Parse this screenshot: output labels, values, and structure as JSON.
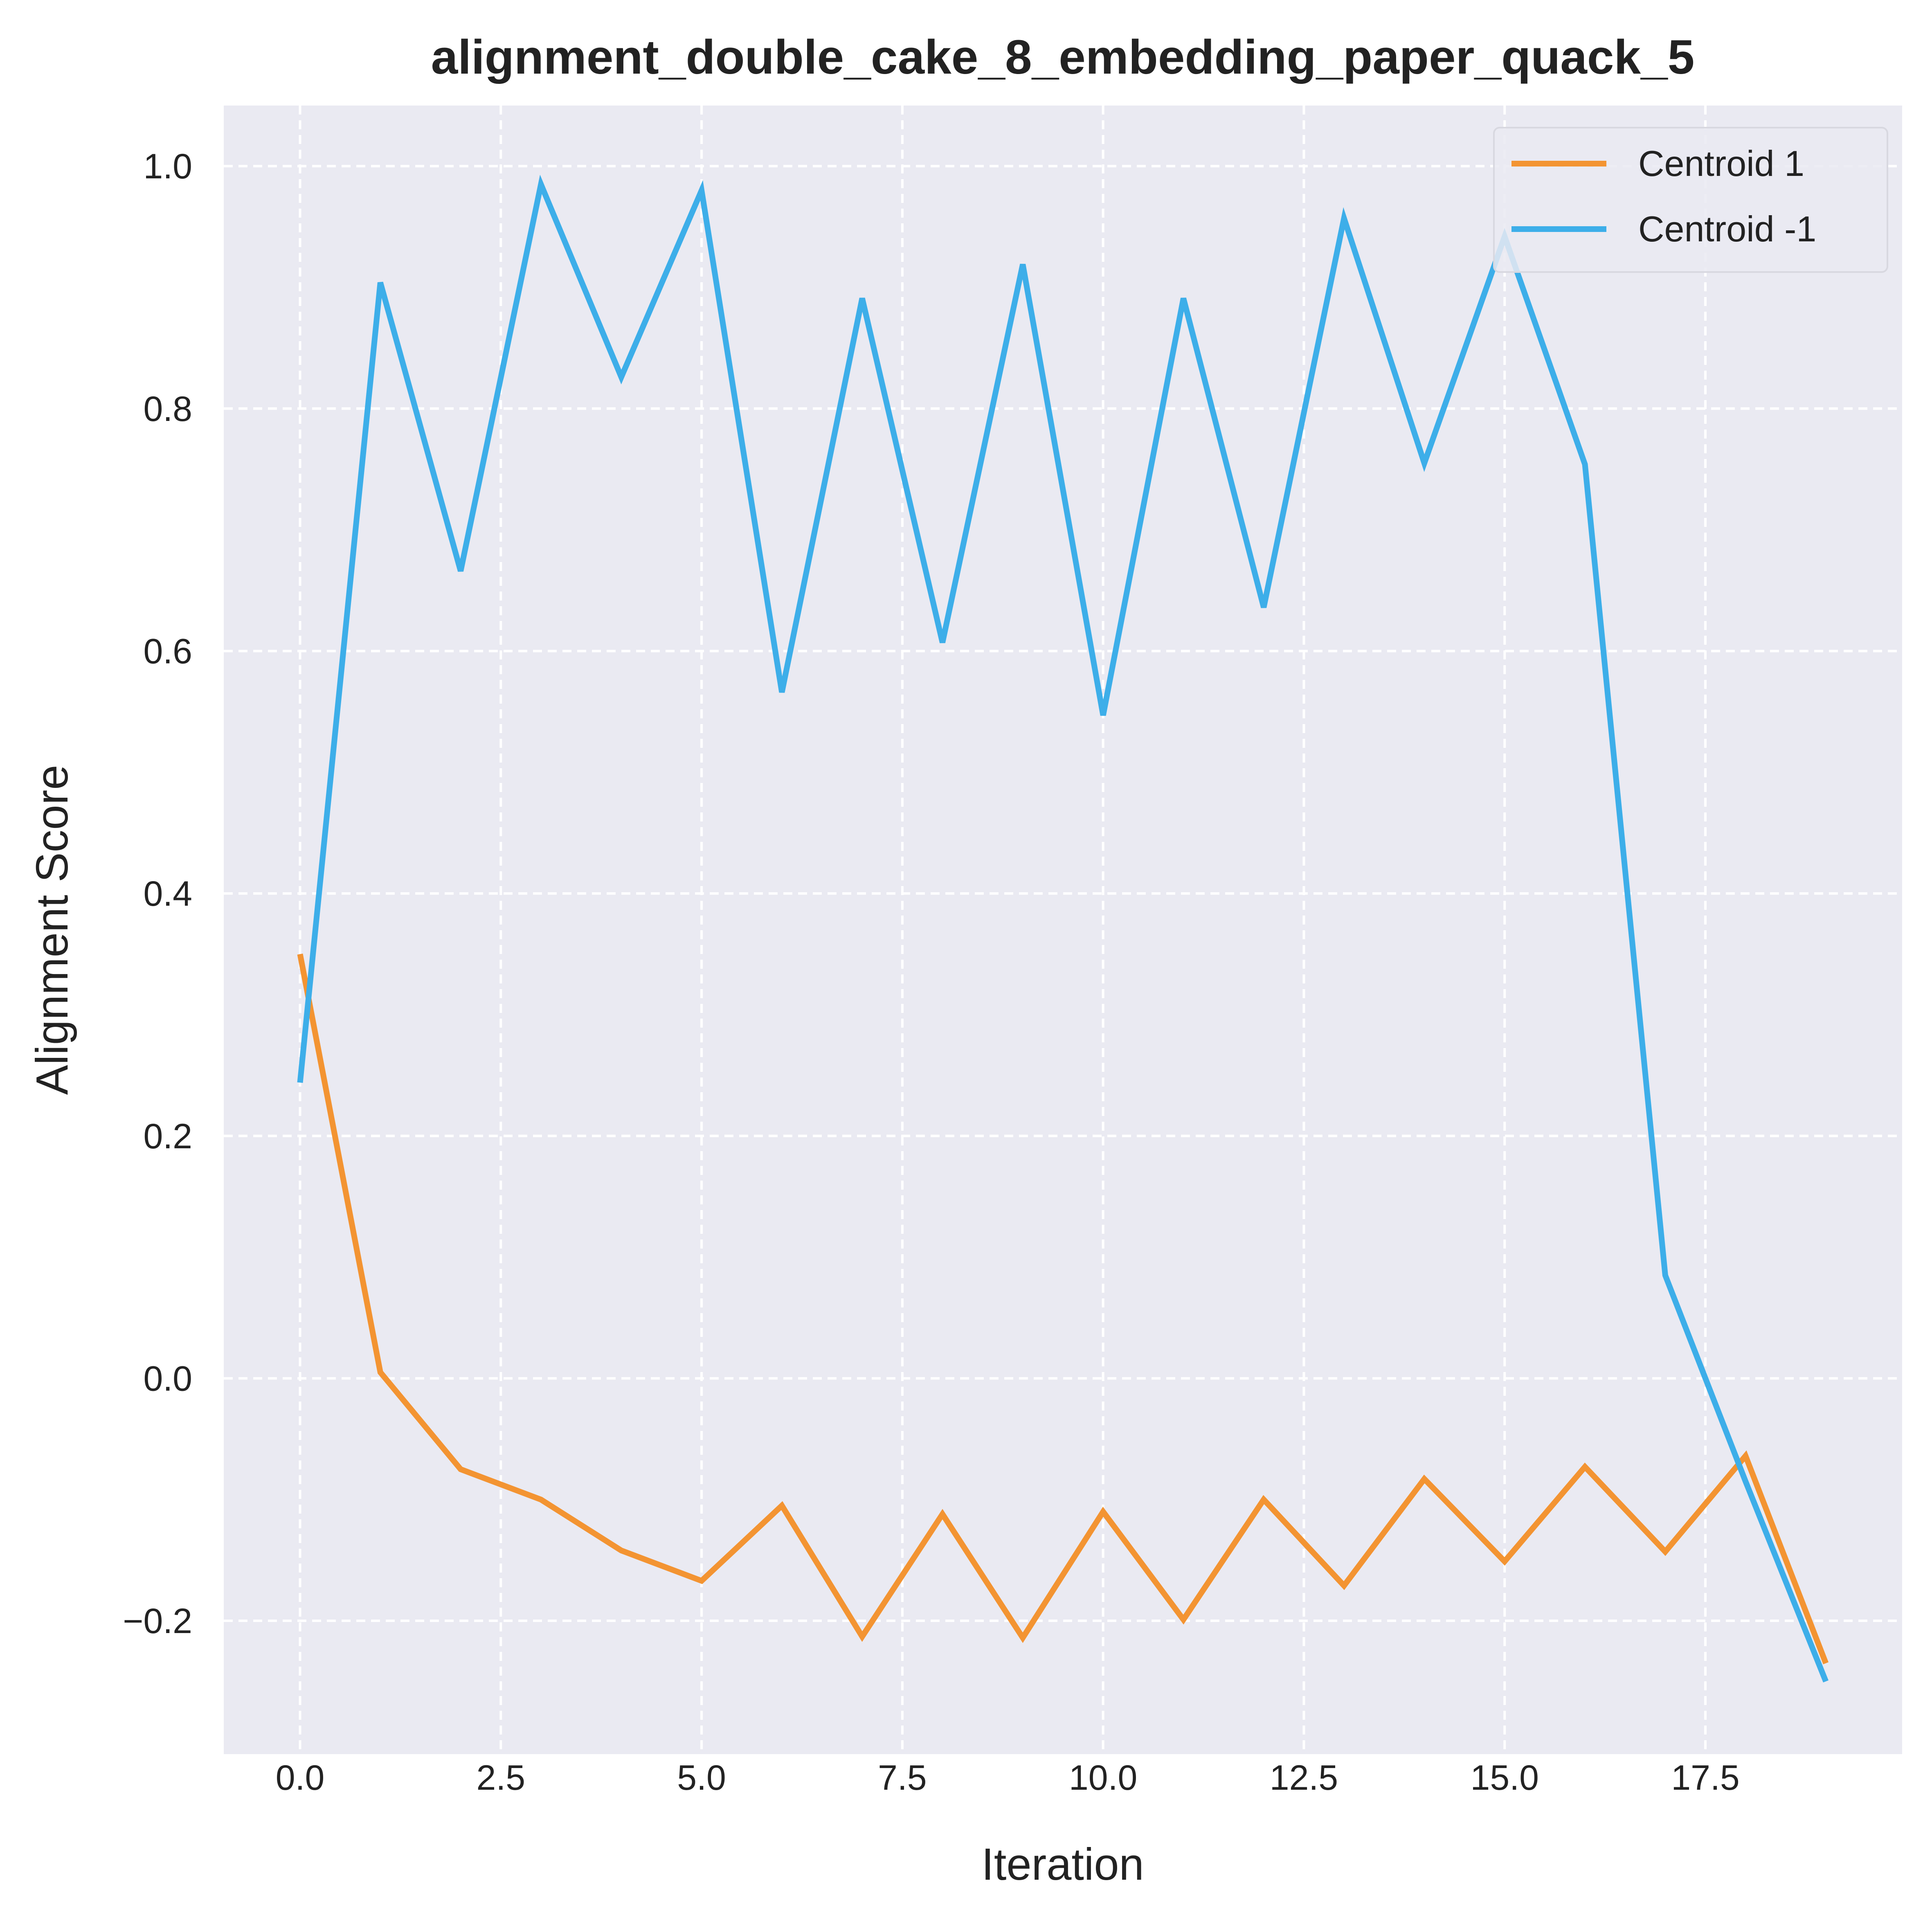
{
  "chart_data": {
    "type": "line",
    "title": "alignment_double_cake_8_embedding_paper_quack_5",
    "xlabel": "Iteration",
    "ylabel": "Alignment Score",
    "xlim": [
      -0.95,
      19.95
    ],
    "ylim": [
      -0.31,
      1.05
    ],
    "x": [
      0,
      1,
      2,
      3,
      4,
      5,
      6,
      7,
      8,
      9,
      10,
      11,
      12,
      13,
      14,
      15,
      16,
      17,
      18,
      19
    ],
    "x_ticks": [
      0.0,
      2.5,
      5.0,
      7.5,
      10.0,
      12.5,
      15.0,
      17.5
    ],
    "x_tick_labels": [
      "0.0",
      "2.5",
      "5.0",
      "7.5",
      "10.0",
      "12.5",
      "15.0",
      "17.5"
    ],
    "y_ticks": [
      -0.2,
      0.0,
      0.2,
      0.4,
      0.6,
      0.8,
      1.0
    ],
    "y_tick_labels": [
      "−0.2",
      "0.0",
      "0.2",
      "0.4",
      "0.6",
      "0.8",
      "1.0"
    ],
    "grid": true,
    "legend_position": "top-right",
    "series": [
      {
        "name": "Centroid 1",
        "color": "#f39432",
        "values": [
          0.35,
          0.005,
          -0.075,
          -0.1,
          -0.142,
          -0.167,
          -0.105,
          -0.213,
          -0.112,
          -0.214,
          -0.11,
          -0.199,
          -0.1,
          -0.171,
          -0.083,
          -0.151,
          -0.073,
          -0.143,
          -0.064,
          -0.235
        ]
      },
      {
        "name": "Centroid -1",
        "color": "#3daee9",
        "values": [
          0.244,
          0.904,
          0.666,
          0.985,
          0.826,
          0.98,
          0.566,
          0.891,
          0.607,
          0.919,
          0.547,
          0.891,
          0.636,
          0.957,
          0.755,
          0.942,
          0.754,
          0.085,
          -0.085,
          -0.25
        ]
      }
    ]
  }
}
